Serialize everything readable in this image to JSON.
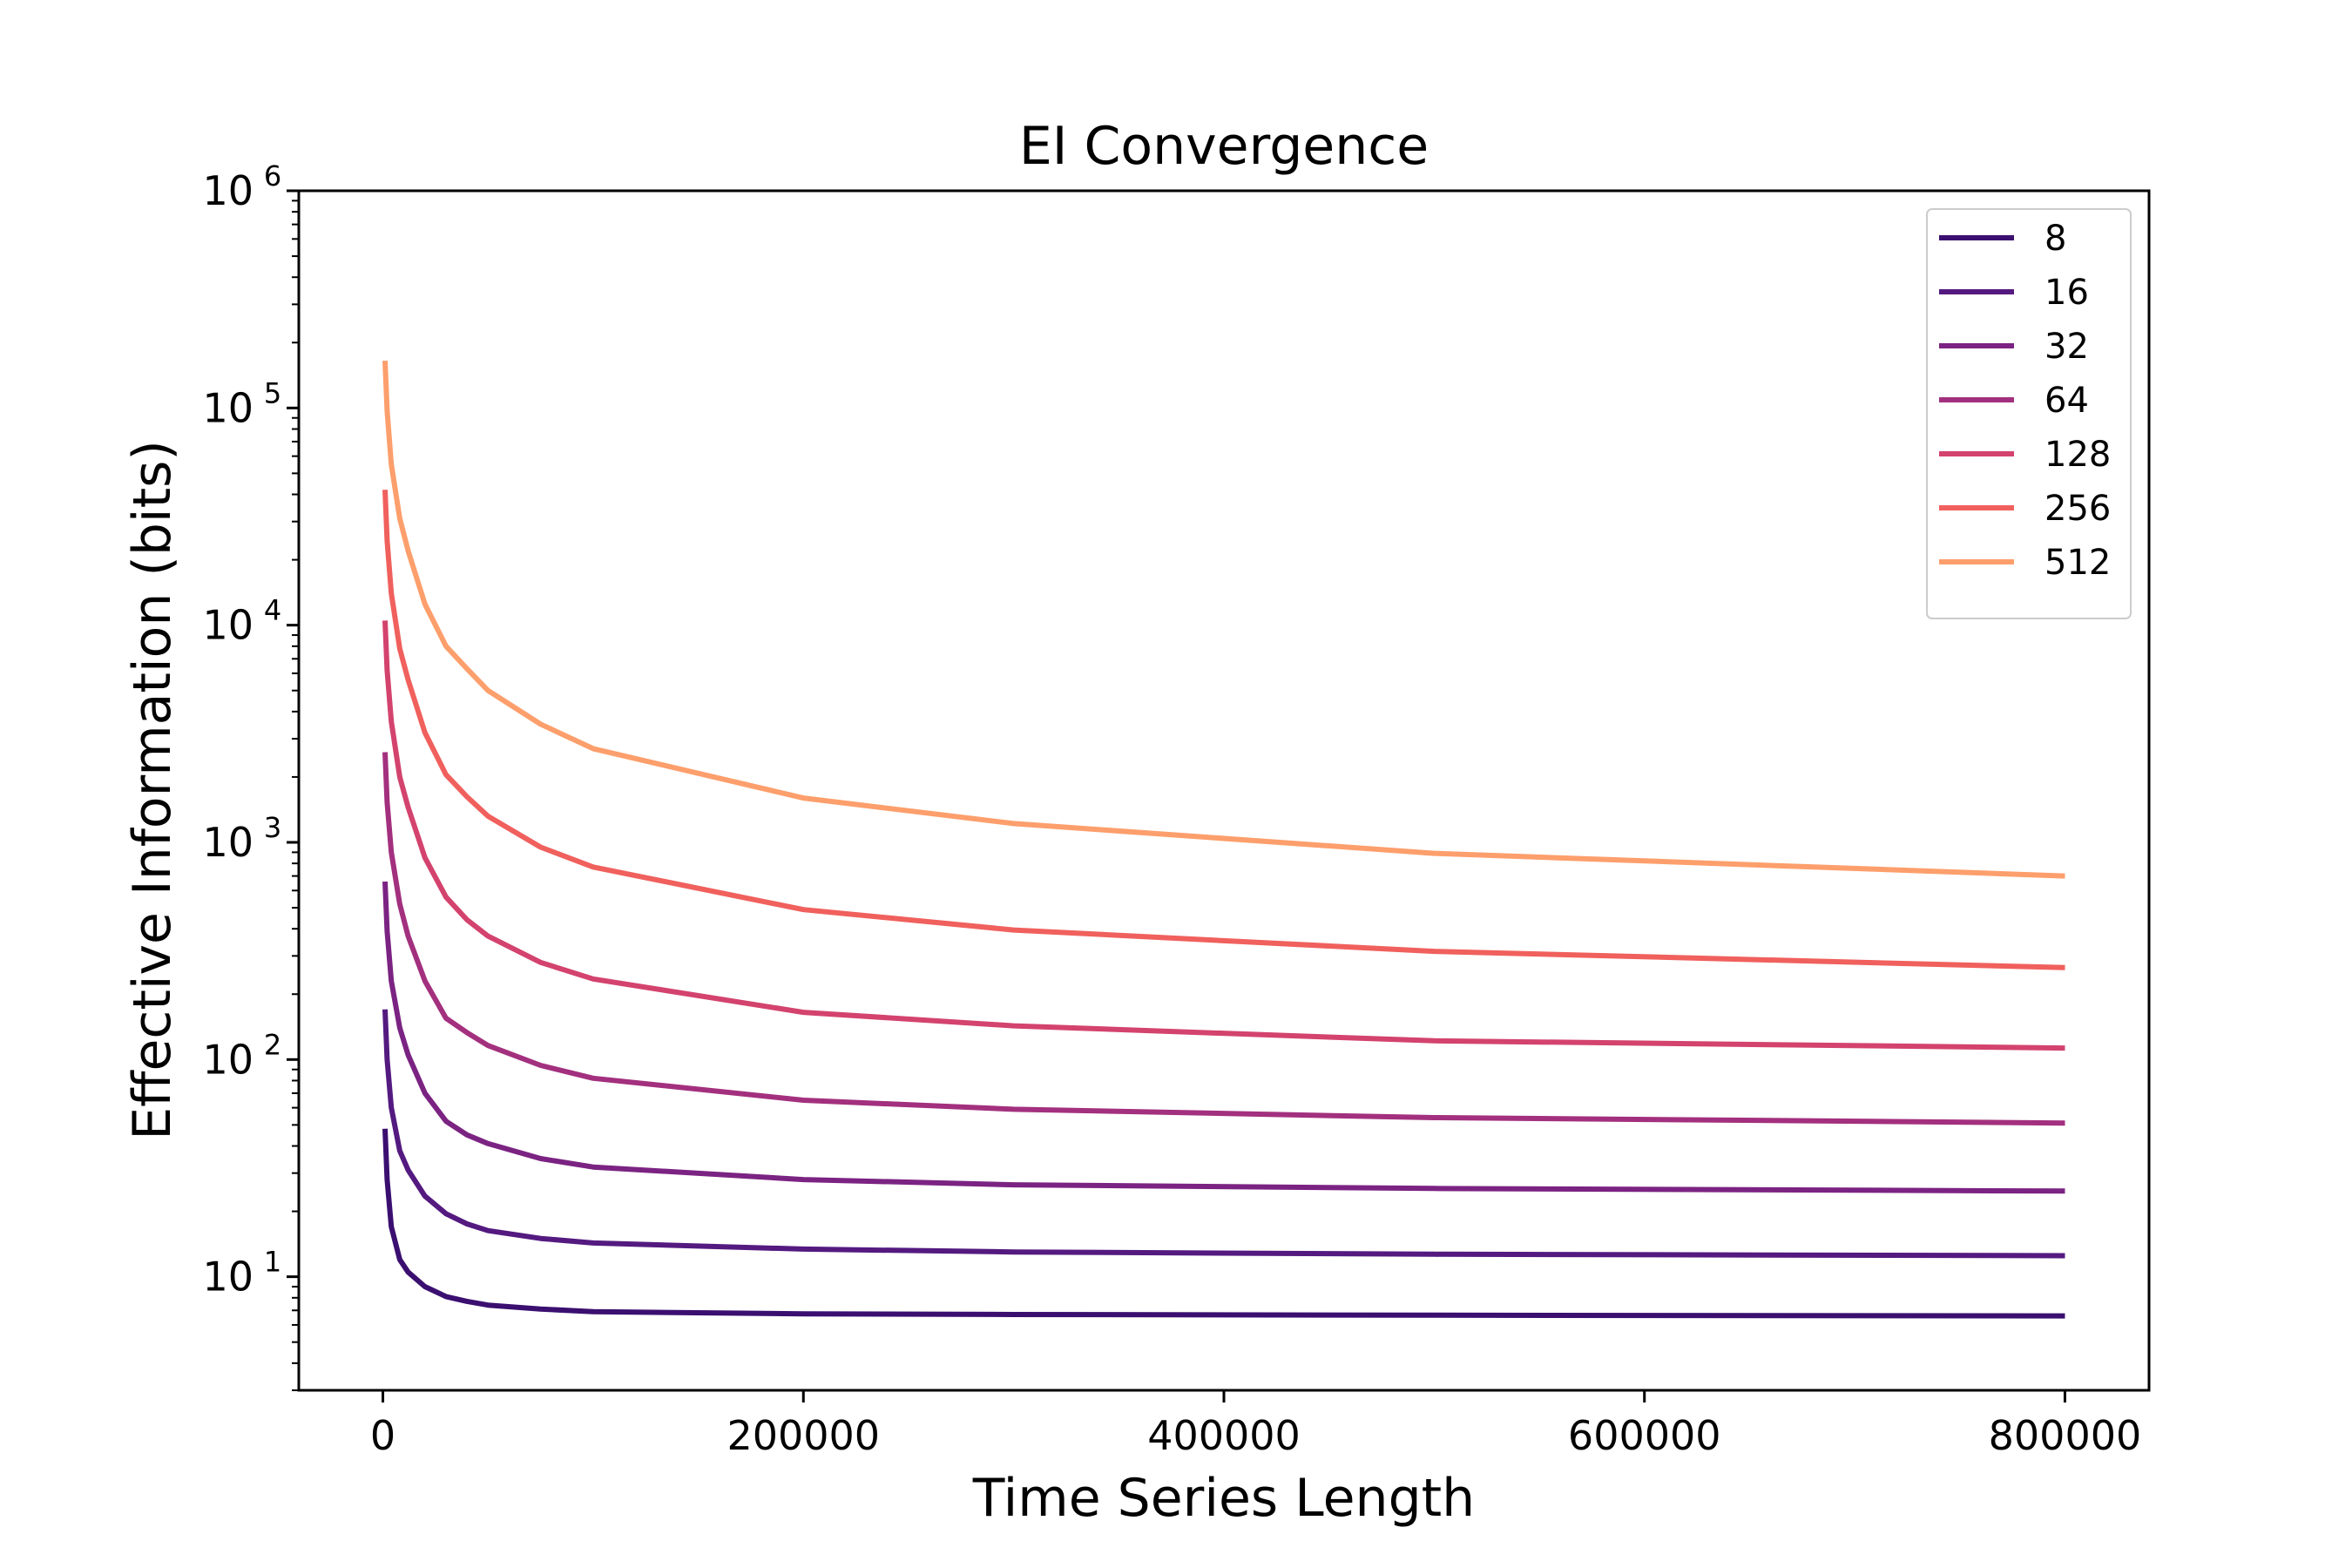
{
  "chart_data": {
    "type": "line",
    "title": "EI Convergence",
    "xlabel": "Time Series Length",
    "ylabel": "Effective Information (bits)",
    "xscale": "linear",
    "yscale": "log",
    "xlim": [
      -40000,
      840000
    ],
    "ylim": [
      3,
      1000000
    ],
    "xticks": [
      0,
      200000,
      400000,
      600000,
      800000
    ],
    "xtick_labels": [
      "0",
      "200000",
      "400000",
      "600000",
      "800000"
    ],
    "yticks": [
      10,
      100,
      1000,
      10000,
      100000,
      1000000
    ],
    "ytick_labels": [
      {
        "base": "10",
        "exp": "1"
      },
      {
        "base": "10",
        "exp": "2"
      },
      {
        "base": "10",
        "exp": "3"
      },
      {
        "base": "10",
        "exp": "4"
      },
      {
        "base": "10",
        "exp": "5"
      },
      {
        "base": "10",
        "exp": "6"
      }
    ],
    "grid": false,
    "legend_position": "top-right",
    "x": [
      1000,
      2000,
      4000,
      8000,
      12000,
      20000,
      30000,
      40000,
      50000,
      75000,
      100000,
      200000,
      300000,
      500000,
      800000
    ],
    "series": [
      {
        "name": "8",
        "color": "#3b0f70",
        "values": [
          48,
          28,
          17,
          12,
          10.5,
          9.0,
          8.1,
          7.7,
          7.4,
          7.1,
          6.9,
          6.75,
          6.7,
          6.65,
          6.6
        ]
      },
      {
        "name": "16",
        "color": "#541a80",
        "values": [
          170,
          100,
          60,
          38,
          31,
          23.5,
          19.5,
          17.5,
          16.3,
          15.0,
          14.3,
          13.4,
          13.0,
          12.7,
          12.5
        ]
      },
      {
        "name": "32",
        "color": "#7b2382",
        "values": [
          660,
          390,
          230,
          140,
          105,
          70,
          52,
          45,
          41,
          35,
          32,
          28,
          26.5,
          25.5,
          24.8
        ]
      },
      {
        "name": "64",
        "color": "#a3307e",
        "values": [
          2600,
          1530,
          900,
          520,
          370,
          230,
          155,
          133,
          116,
          94,
          82,
          65,
          59,
          54,
          51
        ]
      },
      {
        "name": "128",
        "color": "#d3436e",
        "values": [
          10500,
          6200,
          3600,
          2000,
          1450,
          850,
          560,
          440,
          370,
          280,
          235,
          165,
          143,
          122,
          113
        ]
      },
      {
        "name": "256",
        "color": "#f0605d",
        "values": [
          42000,
          24500,
          14000,
          7800,
          5600,
          3200,
          2050,
          1620,
          1320,
          950,
          770,
          490,
          395,
          315,
          265
        ]
      },
      {
        "name": "512",
        "color": "#fd9f6c",
        "values": [
          165000,
          97000,
          55000,
          31000,
          22000,
          12500,
          8000,
          6300,
          5000,
          3500,
          2700,
          1600,
          1220,
          890,
          700
        ]
      }
    ]
  }
}
